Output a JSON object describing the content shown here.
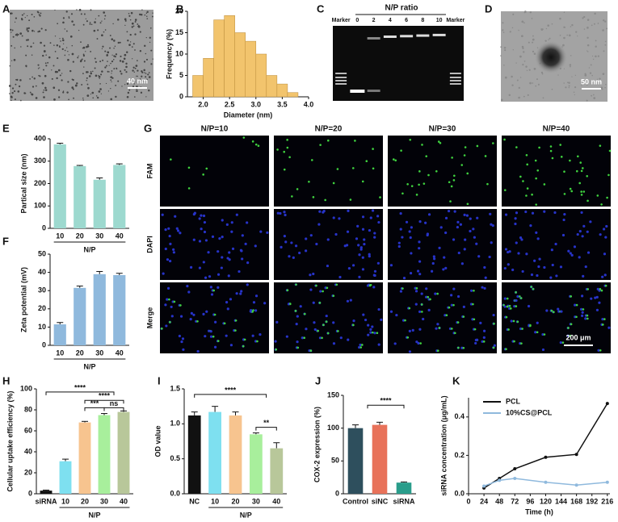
{
  "panel_labels": [
    "A",
    "B",
    "C",
    "D",
    "E",
    "F",
    "G",
    "H",
    "I",
    "J",
    "K"
  ],
  "tem_images": [
    {
      "scale_bar": "40 nm"
    },
    {
      "scale_bar": "50 nm"
    }
  ],
  "gel": {
    "title": "N/P ratio",
    "lanes": [
      "Marker",
      "0",
      "2",
      "4",
      "6",
      "8",
      "10",
      "Marker"
    ]
  },
  "fluorescence": {
    "columns": [
      "N/P=10",
      "N/P=20",
      "N/P=30",
      "N/P=40"
    ],
    "rows": [
      "FAM",
      "DAPI",
      "Merge"
    ],
    "scale_bar": "200 μm"
  },
  "chart_data": [
    {
      "type": "histogram",
      "x_label": "Diameter (nm)",
      "y_label": "Frequency (%)",
      "bins": [
        1.8,
        2.0,
        2.2,
        2.4,
        2.6,
        2.8,
        3.0,
        3.2,
        3.4,
        3.6,
        3.8
      ],
      "values": [
        5,
        9,
        18,
        19,
        15,
        13,
        10,
        5,
        3,
        1
      ],
      "color": "#f2c46d",
      "xlim": [
        1.7,
        4.0
      ],
      "xticks": [
        {
          "value": 2,
          "label": "2.0"
        },
        2.5,
        {
          "value": 3,
          "label": "3.0"
        },
        3.5,
        {
          "value": 4,
          "label": "4.0"
        }
      ],
      "ylim": [
        0,
        20
      ],
      "yticks": [
        0,
        5,
        10,
        15,
        20
      ]
    },
    {
      "type": "bar",
      "y_label": "Partical size (nm)",
      "x_label": "N/P",
      "categories": [
        "10",
        "20",
        "30",
        "40"
      ],
      "values": [
        375,
        278,
        217,
        283
      ],
      "errors": [
        5,
        3,
        8,
        5
      ],
      "color": "#9dd9cf",
      "ylim": [
        0,
        400
      ],
      "yticks": [
        0,
        100,
        200,
        300,
        400
      ]
    },
    {
      "type": "bar",
      "y_label": "Zeta potential (mV)",
      "x_label": "N/P",
      "categories": [
        "10",
        "20",
        "30",
        "40"
      ],
      "values": [
        11.5,
        31.5,
        39,
        38.5
      ],
      "errors": [
        1,
        1,
        1.5,
        1
      ],
      "color": "#8fb9dd",
      "ylim": [
        0,
        50
      ],
      "yticks": [
        0,
        10,
        20,
        30,
        40,
        50
      ]
    },
    {
      "type": "bar",
      "y_label": "Cellular uptake efficiency (%)",
      "x_label": "N/P",
      "categories": [
        "siRNA",
        "10",
        "20",
        "30",
        "40"
      ],
      "values": [
        3,
        31,
        68,
        75,
        78
      ],
      "errors": [
        0.5,
        2,
        1,
        1.5,
        1
      ],
      "colors": [
        "#111111",
        "#7ee0f0",
        "#f7c48f",
        "#a8ef9c",
        "#b8c79a"
      ],
      "ylim": [
        0,
        100
      ],
      "yticks": [
        0,
        20,
        40,
        60,
        80,
        100
      ],
      "annotations": [
        "****",
        "****",
        "***",
        "ns"
      ]
    },
    {
      "type": "bar",
      "y_label": "OD value",
      "x_label": "N/P",
      "categories": [
        "NC",
        "10",
        "20",
        "30",
        "40"
      ],
      "values": [
        1.12,
        1.17,
        1.12,
        0.85,
        0.65
      ],
      "errors": [
        0.05,
        0.08,
        0.05,
        0.02,
        0.08
      ],
      "colors": [
        "#111111",
        "#7ee0f0",
        "#f7c48f",
        "#a8ef9c",
        "#b8c79a"
      ],
      "ylim": [
        0,
        1.5
      ],
      "yticks": [
        {
          "value": 0,
          "label": "0.0"
        },
        0.5,
        {
          "value": 1,
          "label": "1.0"
        },
        1.5
      ],
      "annotations": [
        "****",
        "**"
      ]
    },
    {
      "type": "bar",
      "y_label": "COX-2 expression (%)",
      "categories": [
        "Control",
        "siNC",
        "siRNA"
      ],
      "values": [
        100,
        105,
        17
      ],
      "errors": [
        5,
        4,
        1
      ],
      "colors": [
        "#2e4f5d",
        "#e8725a",
        "#2a9d8b"
      ],
      "ylim": [
        0,
        150
      ],
      "yticks": [
        0,
        50,
        100,
        150
      ],
      "annotations": [
        "****"
      ]
    },
    {
      "type": "line",
      "x_label": "Time (h)",
      "y_label": "siRNA concentration (μg/mL)",
      "x": [
        24,
        48,
        72,
        120,
        168,
        216
      ],
      "series": [
        {
          "name": "PCL",
          "color": "#111111",
          "values": [
            0.03,
            0.08,
            0.13,
            0.19,
            0.205,
            0.47
          ]
        },
        {
          "name": "10%CS@PCL",
          "color": "#8fb9dd",
          "values": [
            0.04,
            0.07,
            0.08,
            0.06,
            0.045,
            0.06
          ]
        }
      ],
      "xlim": [
        0,
        220
      ],
      "xticks": [
        0,
        24,
        48,
        72,
        96,
        120,
        144,
        168,
        192,
        216
      ],
      "ylim": [
        0,
        0.5
      ],
      "yticks": [
        {
          "value": 0,
          "label": "0.0"
        },
        0.2,
        0.4
      ],
      "legend": "upper left"
    }
  ]
}
